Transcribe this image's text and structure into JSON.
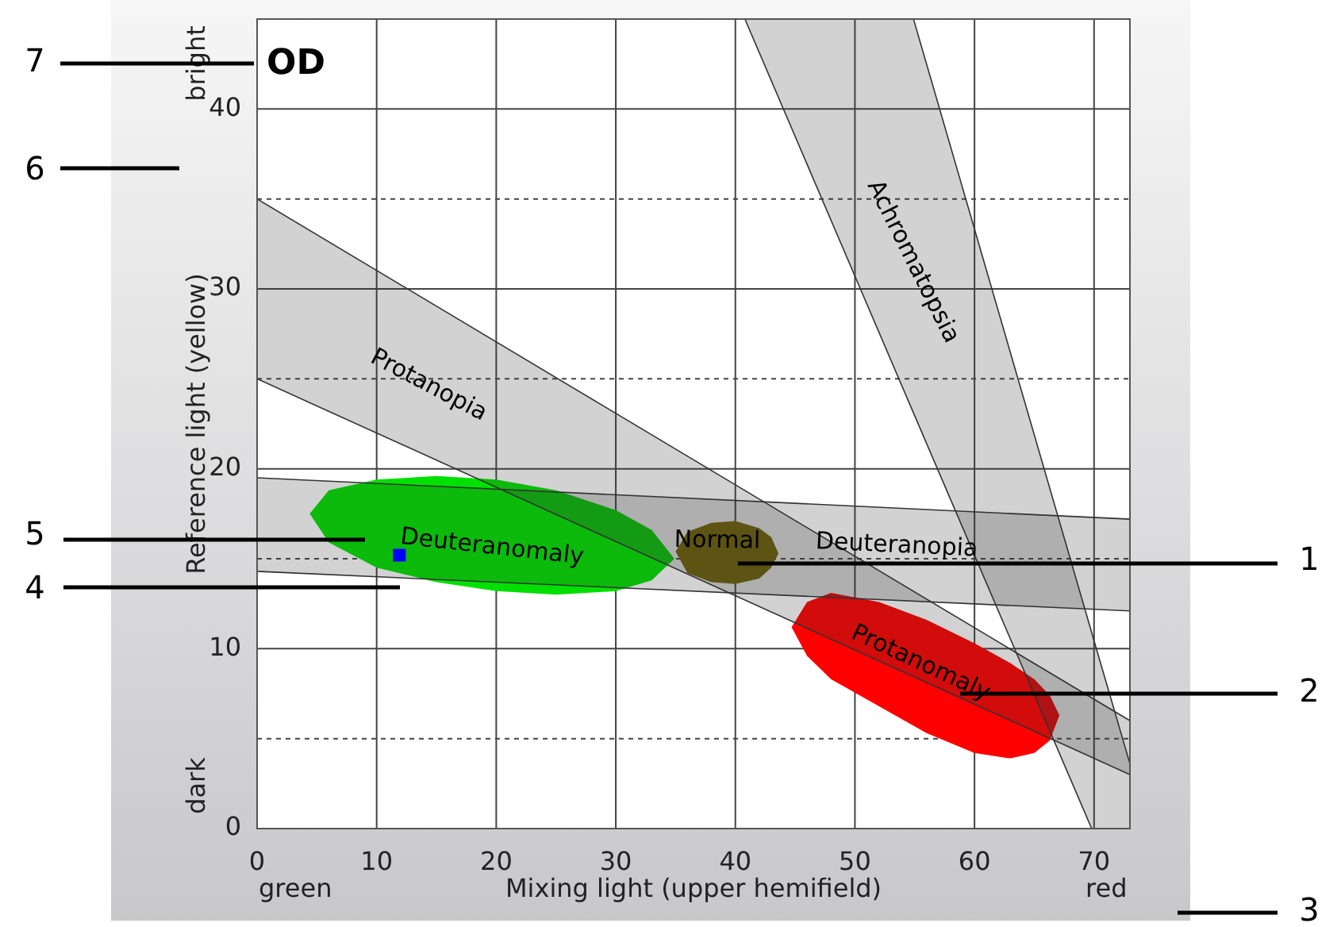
{
  "chart_data": {
    "type": "scatter",
    "title": "OD",
    "xlabel": "Mixing light (upper hemifield)",
    "ylabel": "Reference light (yellow)",
    "xlim": [
      0,
      73
    ],
    "ylim": [
      0,
      45
    ],
    "xticks": [
      0,
      10,
      20,
      30,
      40,
      50,
      60,
      70
    ],
    "yticks": [
      0,
      {
        "value": 5,
        "label": null
      },
      10,
      {
        "value": 15,
        "label": null
      },
      20,
      {
        "value": 25,
        "label": null
      },
      30,
      {
        "value": 35,
        "label": null
      },
      40
    ],
    "grid": true,
    "legend": false,
    "marker": "square",
    "series": [
      {
        "type": "area",
        "color": "#00e000",
        "values": [
          null,
          null,
          null,
          null,
          null,
          null,
          null,
          null,
          null
        ],
        "x": [
          4.4,
          6,
          10,
          15,
          20,
          25,
          30,
          33,
          34.9
        ],
        "lower": [
          17.5,
          15.9,
          14.5,
          13.7,
          13.2,
          13.0,
          13.2,
          13.8,
          15.0
        ],
        "upper": [
          17.5,
          18.8,
          19.4,
          19.6,
          19.4,
          18.8,
          17.7,
          16.6,
          15.0
        ]
      },
      {
        "type": "area",
        "color": "#7a6a00",
        "values": [
          null,
          null,
          null,
          null,
          null,
          null,
          null
        ],
        "x": [
          35,
          36,
          38,
          40,
          42,
          43,
          43.6
        ],
        "lower": [
          15.4,
          14.2,
          13.7,
          13.6,
          13.9,
          14.5,
          15.3
        ],
        "upper": [
          15.4,
          16.5,
          17.0,
          17.1,
          16.7,
          16.2,
          15.3
        ]
      },
      {
        "type": "area",
        "color": "#ff0000",
        "values": [
          null,
          null,
          null,
          null,
          null,
          null,
          null,
          null,
          null,
          null
        ],
        "x": [
          44.7,
          46,
          48,
          52,
          56,
          60,
          63,
          65,
          66.3,
          67.1
        ],
        "lower": [
          11.2,
          9.6,
          8.3,
          6.8,
          5.3,
          4.2,
          3.9,
          4.2,
          4.9,
          6.3
        ],
        "upper": [
          11.2,
          12.6,
          13.1,
          12.6,
          11.6,
          10.3,
          9.2,
          8.3,
          7.4,
          6.3
        ]
      },
      {
        "type": "area",
        "color": "#333333",
        "values": [
          null,
          null
        ],
        "x": [
          0,
          73
        ],
        "lower": [
          25,
          3
        ],
        "upper": [
          35,
          6
        ]
      },
      {
        "type": "area",
        "color": "#333333",
        "values": [
          null,
          null
        ],
        "x": [
          0,
          73
        ],
        "lower": [
          14.3,
          12.1
        ],
        "upper": [
          19.5,
          17.2
        ]
      },
      {
        "type": "area",
        "color": "#333333",
        "values": [
          null,
          null,
          null,
          null
        ],
        "x": [
          40.8,
          54.9,
          69.8,
          73
        ],
        "lower": [
          45,
          23.1,
          0,
          0
        ],
        "upper": [
          45,
          45,
          10.9,
          3.6
        ]
      },
      {
        "type": "scatter",
        "color": "#0000ff",
        "x": [
          11.9
        ],
        "values": [
          15.2
        ]
      }
    ],
    "annotations": [
      "Protanopia",
      "Deuteranomaly",
      "Normal",
      "Deuteranopia",
      "Achromatopsia",
      "Protanomaly",
      "green",
      "red",
      "dark",
      "bright",
      "7",
      "6",
      "5",
      "4",
      "1",
      {
        "text": "2",
        "x": 58.8,
        "y": 7.5
      },
      "3"
    ]
  }
}
